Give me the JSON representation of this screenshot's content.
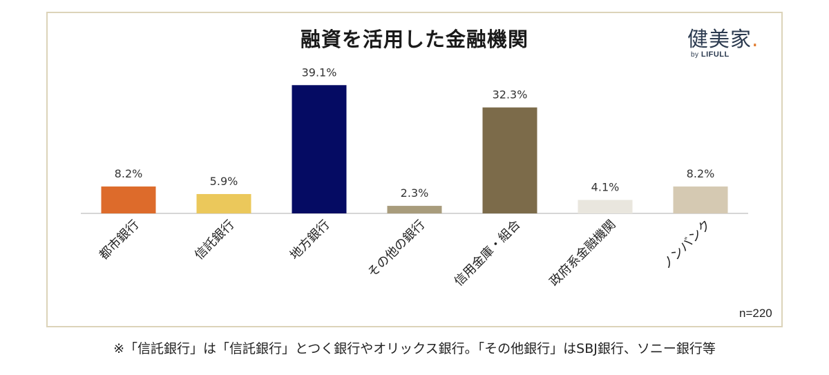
{
  "brand": {
    "name": "健美家",
    "dot": ".",
    "by": "by",
    "sub": "LIFULL"
  },
  "chart_data": {
    "type": "bar",
    "title": "融資を活用した金融機関",
    "categories": [
      "都市銀行",
      "信託銀行",
      "地方銀行",
      "その他の銀行",
      "信用金庫・組合",
      "政府系金融機関",
      "ノンバンク"
    ],
    "values": [
      8.2,
      5.9,
      39.1,
      2.3,
      32.3,
      4.1,
      8.2
    ],
    "data_labels": [
      "8.2%",
      "5.9%",
      "39.1%",
      "2.3%",
      "32.3%",
      "4.1%",
      "8.2%"
    ],
    "colors": [
      "#dd6b2b",
      "#ebc85b",
      "#050b63",
      "#a89c7c",
      "#7c6b4a",
      "#e9e6de",
      "#d5c9b2"
    ],
    "ylim": [
      0,
      40
    ],
    "xlabel": "",
    "ylabel": "",
    "grid": false,
    "sample_size": "n=220"
  },
  "footnote": "※「信託銀行」は「信託銀行」とつく銀行やオリックス銀行。「その他銀行」はSBJ銀行、ソニー銀行等"
}
